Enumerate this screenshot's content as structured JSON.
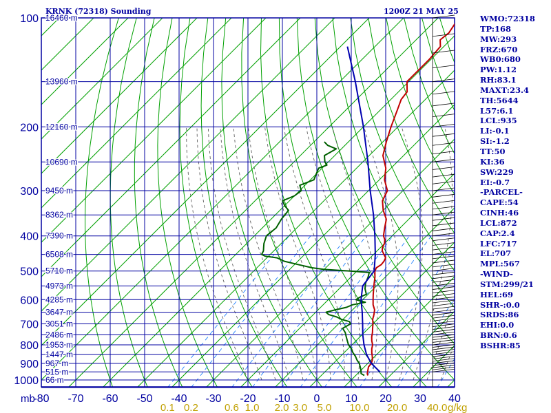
{
  "header": {
    "station": "KRNK (72318) Sounding",
    "time": "1200Z 21 MAY 25"
  },
  "indices": [
    "WMO:72318",
    "TP:168",
    "MW:293",
    "FRZ:670",
    "WB0:680",
    "PW:1.12",
    "RH:83.1",
    "MAXT:23.4",
    "TH:5644",
    "L57:6.1",
    "LCL:935",
    "LI:-0.1",
    "SI:-1.2",
    "TT:50",
    "KI:36",
    "SW:229",
    "EI:-0.7",
    "-PARCEL-",
    "CAPE:54",
    "CINH:46",
    "LCL:872",
    "CAP:2.4",
    "LFC:717",
    "EL:707",
    "MPL:567",
    "-WIND-",
    "STM:299/21",
    "HEL:69",
    "SHR-:0.0",
    "SRDS:86",
    "EHI:0.0",
    "BRN:0.6",
    "BSHR:85"
  ],
  "colors": {
    "frame": "#0000a0",
    "isobar": "#0000a0",
    "isotherm": "#00a000",
    "dry_adiabat": "#00a000",
    "moist_adiabat": "#606060",
    "mixing_ratio": "#2080ff",
    "temperature": "#c00000",
    "dewpoint": "#006000",
    "parcel": "#0000b0",
    "mix_label": "#c0a000"
  },
  "chart_data": {
    "type": "line",
    "title": "KRNK (72318) Sounding",
    "xlabel": "",
    "ylabel": "mb",
    "x_ticks": [
      -80,
      -70,
      -60,
      -50,
      -40,
      -30,
      -20,
      -10,
      0,
      10,
      20,
      30,
      40
    ],
    "x_tick_labels": [
      "-80",
      "-70",
      "-60",
      "-50",
      "-40",
      "-30",
      "-20",
      "-10",
      "0",
      "10",
      "20",
      "30",
      "40"
    ],
    "pressure_ticks": [
      100,
      200,
      300,
      400,
      500,
      600,
      700,
      800,
      900,
      1000
    ],
    "xlim": [
      -80,
      40
    ],
    "ylim": [
      1050,
      100
    ],
    "height_labels": [
      {
        "p": 100,
        "label": "16460 m"
      },
      {
        "p": 150,
        "label": "13960 m"
      },
      {
        "p": 200,
        "label": "12160 m"
      },
      {
        "p": 250,
        "label": "10690 m"
      },
      {
        "p": 300,
        "label": "9450 m"
      },
      {
        "p": 350,
        "label": "8362 m"
      },
      {
        "p": 400,
        "label": "7390 m"
      },
      {
        "p": 450,
        "label": "6508 m"
      },
      {
        "p": 500,
        "label": "5710 m"
      },
      {
        "p": 550,
        "label": "4973 m"
      },
      {
        "p": 600,
        "label": "4285 m"
      },
      {
        "p": 650,
        "label": "3647 m"
      },
      {
        "p": 700,
        "label": "3051 m"
      },
      {
        "p": 750,
        "label": "2486 m"
      },
      {
        "p": 800,
        "label": "1953 m"
      },
      {
        "p": 850,
        "label": "1447 m"
      },
      {
        "p": 900,
        "label": "967 m"
      },
      {
        "p": 950,
        "label": "515 m"
      },
      {
        "p": 1000,
        "label": "66 m"
      }
    ],
    "mixing_ratio_labels": [
      "0.1",
      "0.2",
      "0.6",
      "1.0",
      "2.0",
      "3.0",
      "5.0",
      "10.0",
      "20.0",
      "40.0"
    ],
    "mixing_ratio_unit": "g/kg",
    "series": [
      {
        "p": [
          972,
          960,
          940,
          920,
          900,
          880,
          860,
          840,
          820,
          800,
          780,
          760,
          740,
          720,
          700,
          680,
          660,
          640,
          620,
          600,
          580,
          560,
          540,
          520,
          500,
          490,
          480,
          470,
          460,
          450,
          440,
          430,
          420,
          410,
          400,
          380,
          360,
          340,
          320,
          300,
          280,
          260,
          240,
          220,
          200,
          180,
          168,
          160,
          150,
          140,
          130,
          120,
          115,
          110,
          100
        ],
        "values": [
          13.5,
          12.8,
          12.0,
          11.2,
          11.0,
          10.3,
          9.2,
          8.0,
          6.9,
          6.0,
          4.6,
          3.4,
          2.4,
          1.2,
          0.0,
          -1.4,
          -2.4,
          -3.6,
          -5.5,
          -7.0,
          -8.5,
          -10.0,
          -11.5,
          -13.0,
          -14.8,
          -15.3,
          -14.8,
          -15.0,
          -15.5,
          -17.0,
          -18.5,
          -19.5,
          -20.0,
          -21.0,
          -22.5,
          -24.5,
          -26.5,
          -30.0,
          -33.0,
          -34.5,
          -38.5,
          -41.5,
          -46.0,
          -49.0,
          -52.0,
          -55.0,
          -57.0,
          -57.5,
          -60.5,
          -60.5,
          -60.5,
          -61.0,
          -63.0,
          -62.5,
          -64.0
        ]
      },
      {
        "p": [
          972,
          960,
          940,
          920,
          900,
          880,
          860,
          840,
          820,
          800,
          780,
          760,
          740,
          720,
          700,
          690,
          680,
          670,
          660,
          650,
          640,
          630,
          620,
          610,
          600,
          590,
          580,
          560,
          540,
          520,
          505,
          500,
          495,
          490,
          480,
          470,
          460,
          455,
          450,
          440,
          430,
          420,
          400,
          380,
          360,
          340,
          330,
          320,
          310,
          300,
          290,
          280,
          270,
          260,
          255,
          250,
          240,
          230,
          225,
          220
        ],
        "values": [
          12.5,
          11.0,
          10.0,
          8.8,
          7.5,
          5.8,
          4.3,
          2.5,
          1.0,
          -1.0,
          -2.5,
          -4.0,
          -5.5,
          -7.5,
          -6.5,
          -7.5,
          -10.5,
          -12.5,
          -15.5,
          -17.0,
          -15.0,
          -12.5,
          -11.5,
          -8.5,
          -12.0,
          -11.5,
          -10.5,
          -12.5,
          -14.0,
          -15.0,
          -16.0,
          -22.0,
          -30.0,
          -34.0,
          -39.0,
          -44.0,
          -47.0,
          -51.0,
          -52.5,
          -53.0,
          -54.0,
          -55.0,
          -56.5,
          -56.0,
          -57.0,
          -57.5,
          -60.0,
          -62.0,
          -60.0,
          -59.5,
          -61.5,
          -59.0,
          -60.0,
          -61.0,
          -59.5,
          -61.0,
          -63.0,
          -61.5,
          -65.0,
          -67.0
        ]
      },
      {
        "p": [
          950,
          900,
          850,
          800,
          750,
          700,
          650,
          600,
          550,
          500,
          450,
          400,
          350,
          300,
          250,
          200,
          150,
          120
        ],
        "values": [
          16.0,
          11.0,
          7.0,
          3.5,
          0.2,
          -3.0,
          -6.5,
          -10.5,
          -14.0,
          -15.0,
          -19.5,
          -25.0,
          -31.5,
          -39.5,
          -48.5,
          -60.0,
          -75.5,
          -88.0
        ]
      }
    ]
  }
}
